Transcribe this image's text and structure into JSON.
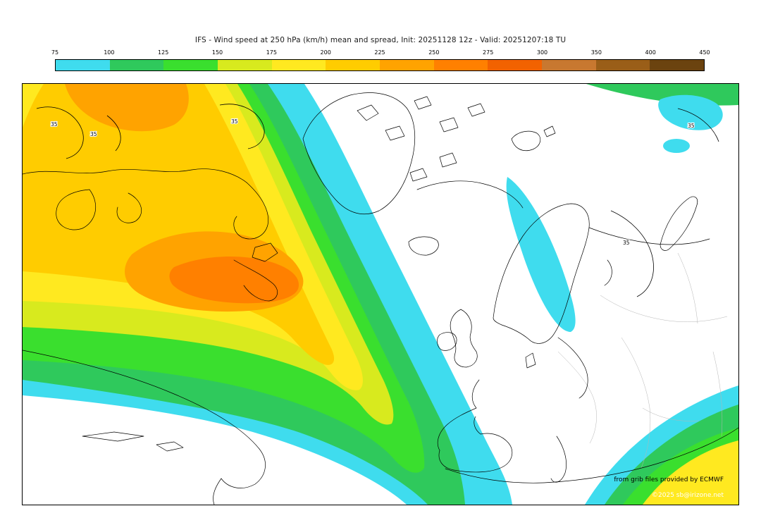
{
  "title": "IFS - Wind speed at 250 hPa (km/h) mean and spread, Init: 20251128 12z - Valid: 20251207:18 TU",
  "colorbar": {
    "labels": [
      "75",
      "100",
      "125",
      "150",
      "175",
      "200",
      "225",
      "250",
      "275",
      "300",
      "350",
      "400",
      "450"
    ],
    "colors": [
      "#3fdcee",
      "#2fc95c",
      "#3adf2e",
      "#d8ea1e",
      "#ffe920",
      "#ffcc00",
      "#ffa300",
      "#ff8000",
      "#f26200",
      "#c87830",
      "#9a5e18",
      "#6b430f"
    ]
  },
  "map": {
    "contour_label": "35",
    "attribution": {
      "line1": "from grib files provided by ECMWF",
      "line2": "©2025 sb@irizone.net"
    }
  }
}
